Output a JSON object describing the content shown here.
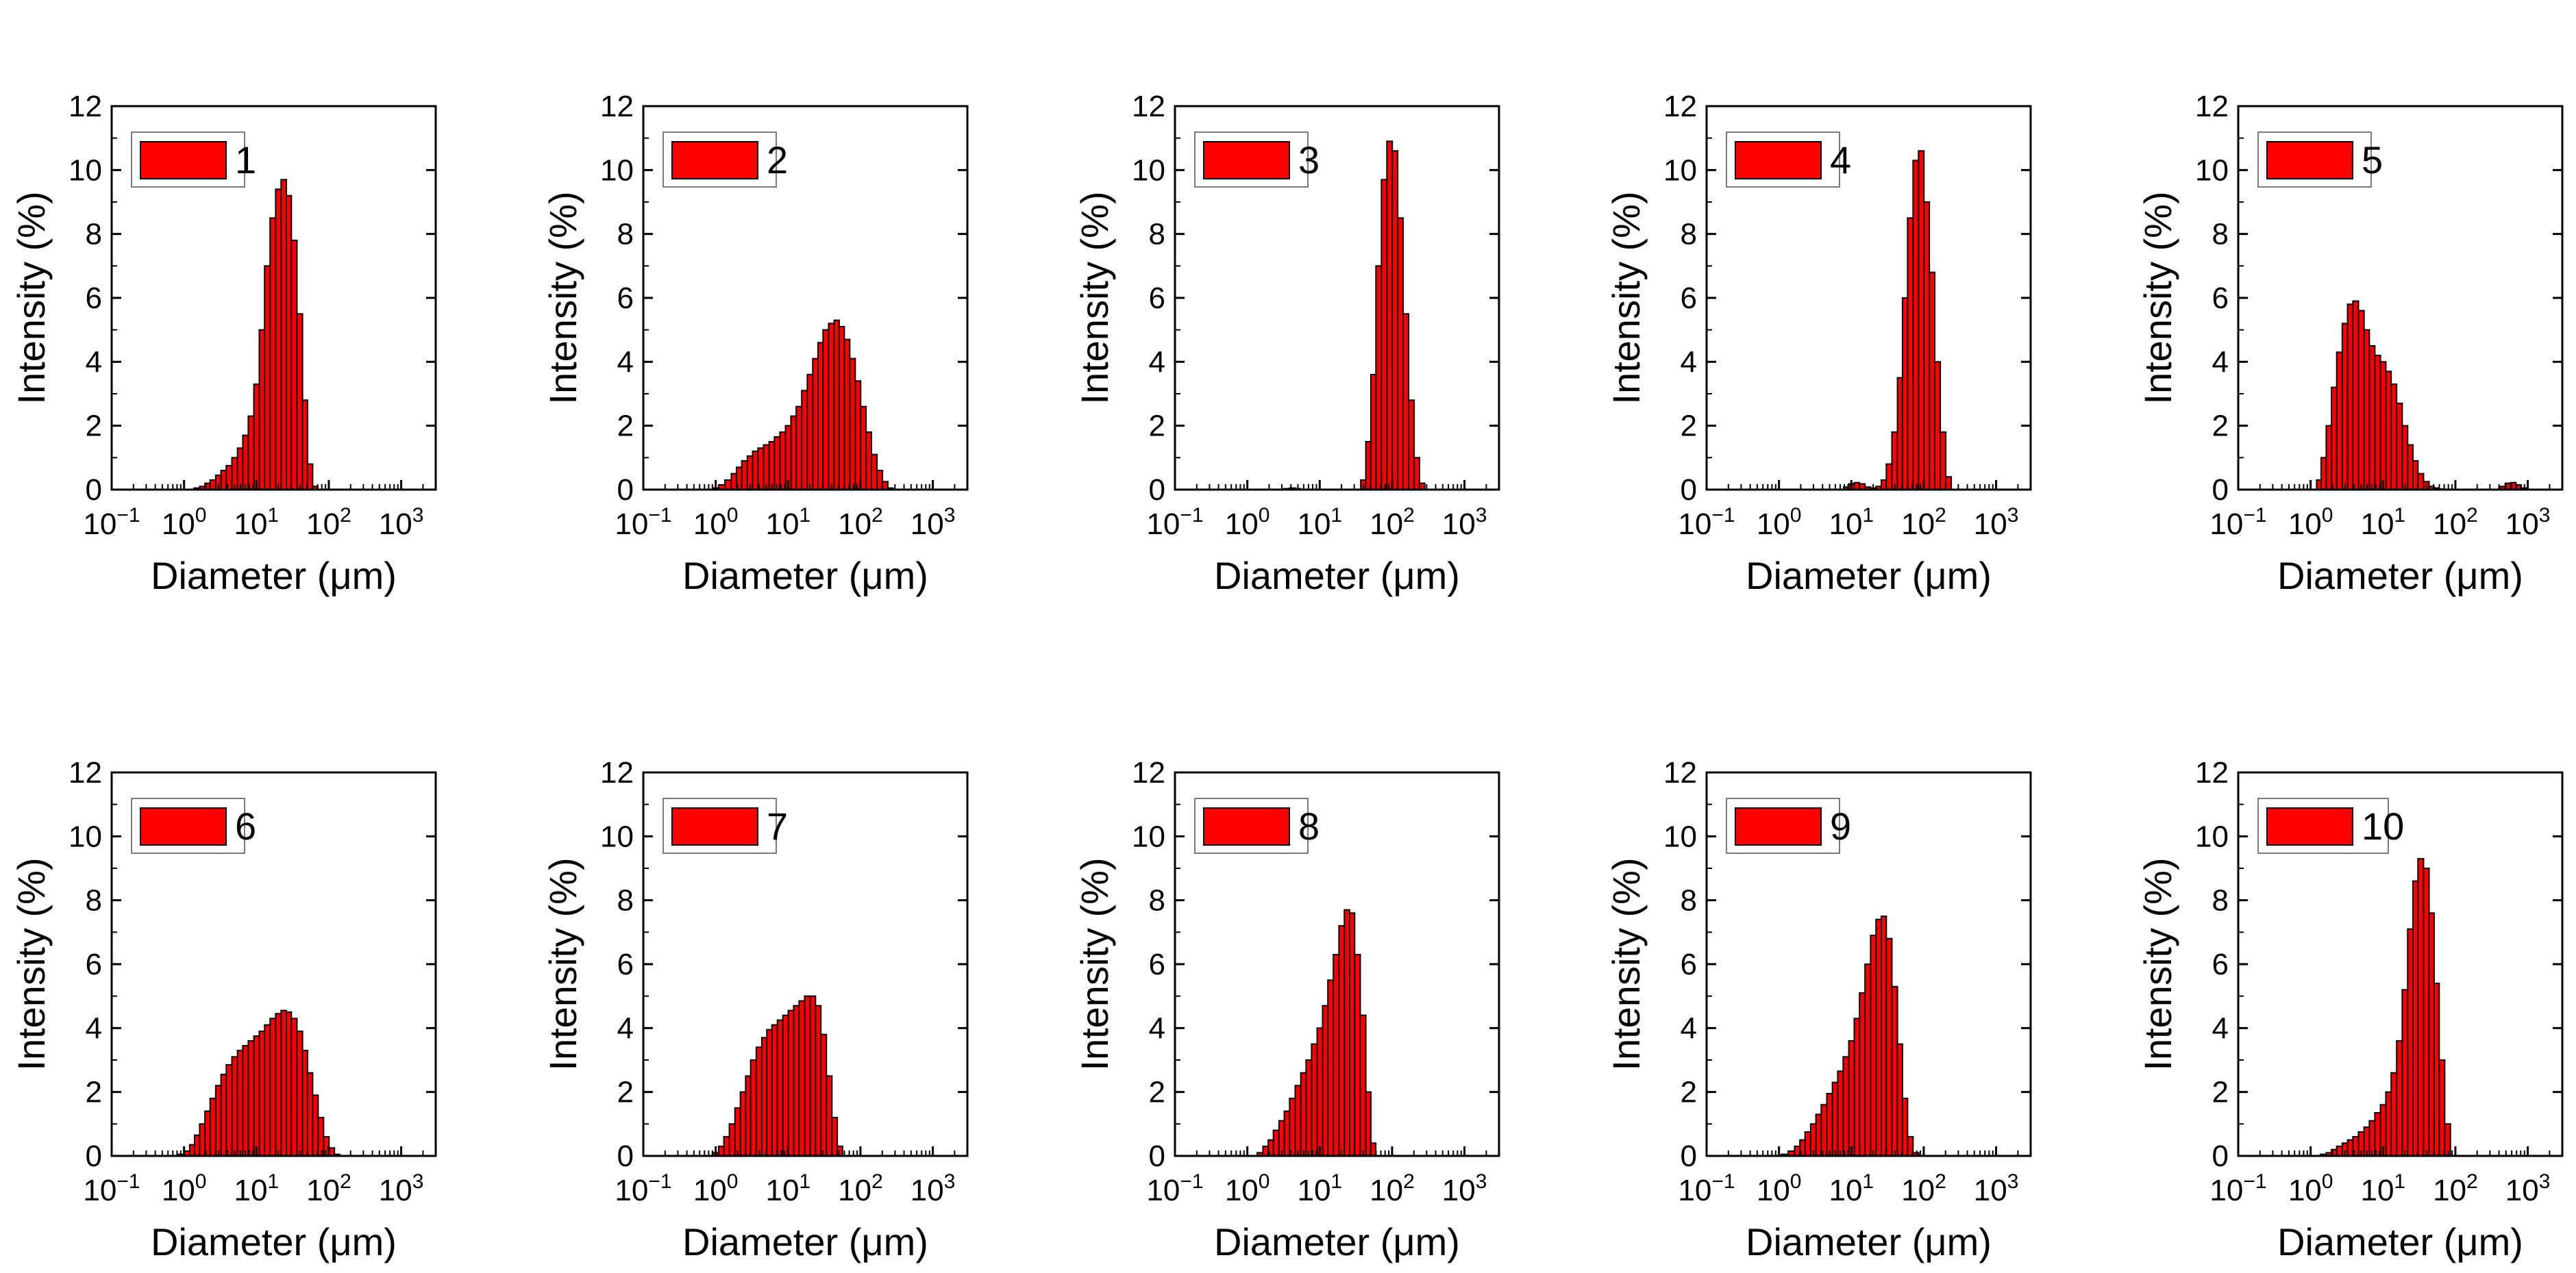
{
  "chart_data": [
    {
      "type": "bar",
      "legend": "1",
      "xlabel": "Diameter (μm)",
      "ylabel": "Intensity (%)",
      "xscale": "log",
      "xlim": [
        0.1,
        3000
      ],
      "ylim": [
        0,
        12
      ],
      "yticks": [
        0,
        2,
        4,
        6,
        8,
        10,
        12
      ],
      "xticks": [
        0.1,
        1,
        10,
        100,
        1000
      ],
      "legend_position": "top-left",
      "color": "#ff0000",
      "bar_edge_color": "#000000",
      "x": [
        1.5,
        1.8,
        2.1,
        2.5,
        3,
        3.5,
        4.2,
        5,
        6,
        7,
        8.5,
        10,
        12,
        14,
        17,
        20,
        24,
        28,
        33,
        40,
        47,
        55,
        65
      ],
      "y": [
        0.05,
        0.1,
        0.2,
        0.3,
        0.45,
        0.6,
        0.75,
        1.0,
        1.3,
        1.7,
        2.3,
        3.3,
        5.0,
        7.0,
        8.5,
        9.4,
        9.7,
        9.2,
        7.8,
        5.5,
        2.8,
        0.8,
        0.1
      ]
    },
    {
      "type": "bar",
      "legend": "2",
      "xlabel": "Diameter (μm)",
      "ylabel": "Intensity (%)",
      "xscale": "log",
      "xlim": [
        0.1,
        3000
      ],
      "ylim": [
        0,
        12
      ],
      "yticks": [
        0,
        2,
        4,
        6,
        8,
        10,
        12
      ],
      "xticks": [
        0.1,
        1,
        10,
        100,
        1000
      ],
      "legend_position": "top-left",
      "color": "#ff0000",
      "bar_edge_color": "#000000",
      "x": [
        1,
        1.2,
        1.5,
        1.8,
        2.1,
        2.5,
        3,
        3.5,
        4.2,
        5,
        6,
        7,
        8.5,
        10,
        12,
        14,
        17,
        20,
        24,
        28,
        33,
        40,
        47,
        55,
        65,
        78,
        92,
        110,
        130,
        155,
        185,
        220,
        260
      ],
      "y": [
        0.05,
        0.15,
        0.3,
        0.5,
        0.7,
        0.9,
        1.05,
        1.2,
        1.3,
        1.4,
        1.5,
        1.65,
        1.8,
        2.0,
        2.3,
        2.6,
        3.1,
        3.6,
        4.1,
        4.6,
        5.0,
        5.2,
        5.3,
        5.1,
        4.7,
        4.1,
        3.4,
        2.6,
        1.8,
        1.1,
        0.6,
        0.25,
        0.05
      ]
    },
    {
      "type": "bar",
      "legend": "3",
      "xlabel": "Diameter (μm)",
      "ylabel": "Intensity (%)",
      "xscale": "log",
      "xlim": [
        0.1,
        3000
      ],
      "ylim": [
        0,
        12
      ],
      "yticks": [
        0,
        2,
        4,
        6,
        8,
        10,
        12
      ],
      "xticks": [
        0.1,
        1,
        10,
        100,
        1000
      ],
      "legend_position": "top-left",
      "color": "#ff0000",
      "bar_edge_color": "#000000",
      "x": [
        3.5,
        4.2,
        5,
        40,
        47,
        55,
        65,
        78,
        92,
        110,
        130,
        155,
        185,
        220,
        260
      ],
      "y": [
        0.03,
        0.05,
        0.03,
        0.3,
        1.5,
        3.6,
        7.0,
        9.7,
        10.9,
        10.6,
        8.5,
        5.5,
        2.8,
        1.0,
        0.2
      ]
    },
    {
      "type": "bar",
      "legend": "4",
      "xlabel": "Diameter (μm)",
      "ylabel": "Intensity (%)",
      "xscale": "log",
      "xlim": [
        0.1,
        3000
      ],
      "ylim": [
        0,
        12
      ],
      "yticks": [
        0,
        2,
        4,
        6,
        8,
        10,
        12
      ],
      "xticks": [
        0.1,
        1,
        10,
        100,
        1000
      ],
      "legend_position": "top-left",
      "color": "#ff0000",
      "bar_edge_color": "#000000",
      "x": [
        8.5,
        10,
        12,
        14,
        17,
        20,
        24,
        28,
        33,
        40,
        47,
        55,
        65,
        78,
        92,
        110,
        130,
        155,
        185,
        220
      ],
      "y": [
        0.08,
        0.18,
        0.22,
        0.18,
        0.08,
        0.05,
        0.1,
        0.3,
        0.8,
        1.8,
        3.5,
        6.0,
        8.5,
        10.3,
        10.6,
        9.0,
        6.8,
        4.0,
        1.8,
        0.4
      ]
    },
    {
      "type": "bar",
      "legend": "5",
      "xlabel": "Diameter (μm)",
      "ylabel": "Intensity (%)",
      "xscale": "log",
      "xlim": [
        0.1,
        3000
      ],
      "ylim": [
        0,
        12
      ],
      "yticks": [
        0,
        2,
        4,
        6,
        8,
        10,
        12
      ],
      "xticks": [
        0.1,
        1,
        10,
        100,
        1000
      ],
      "legend_position": "top-left",
      "color": "#ff0000",
      "bar_edge_color": "#000000",
      "x": [
        1.3,
        1.5,
        1.8,
        2.1,
        2.5,
        3,
        3.5,
        4.2,
        5,
        6,
        7,
        8.5,
        10,
        12,
        14,
        17,
        20,
        24,
        28,
        33,
        40,
        47,
        55,
        65,
        450,
        530,
        630,
        750,
        880
      ],
      "y": [
        0.3,
        1.0,
        2.0,
        3.2,
        4.3,
        5.2,
        5.8,
        5.9,
        5.6,
        5.0,
        4.5,
        4.2,
        4.0,
        3.7,
        3.3,
        2.7,
        2.0,
        1.4,
        0.9,
        0.5,
        0.25,
        0.1,
        0.05,
        0.02,
        0.1,
        0.2,
        0.22,
        0.15,
        0.05
      ]
    },
    {
      "type": "bar",
      "legend": "6",
      "xlabel": "Diameter (μm)",
      "ylabel": "Intensity (%)",
      "xscale": "log",
      "xlim": [
        0.1,
        3000
      ],
      "ylim": [
        0,
        12
      ],
      "yticks": [
        0,
        2,
        4,
        6,
        8,
        10,
        12
      ],
      "xticks": [
        0.1,
        1,
        10,
        100,
        1000
      ],
      "legend_position": "top-left",
      "color": "#ff0000",
      "bar_edge_color": "#000000",
      "x": [
        0.9,
        1.1,
        1.3,
        1.5,
        1.8,
        2.1,
        2.5,
        3,
        3.5,
        4.2,
        5,
        6,
        7,
        8.5,
        10,
        12,
        14,
        17,
        20,
        24,
        28,
        33,
        40,
        47,
        55,
        65,
        78,
        92,
        110,
        130
      ],
      "y": [
        0.05,
        0.15,
        0.35,
        0.65,
        1.0,
        1.4,
        1.8,
        2.2,
        2.55,
        2.85,
        3.1,
        3.3,
        3.45,
        3.6,
        3.75,
        3.9,
        4.1,
        4.3,
        4.45,
        4.55,
        4.5,
        4.3,
        3.9,
        3.3,
        2.6,
        1.9,
        1.2,
        0.6,
        0.25,
        0.05
      ]
    },
    {
      "type": "bar",
      "legend": "7",
      "xlabel": "Diameter (μm)",
      "ylabel": "Intensity (%)",
      "xscale": "log",
      "xlim": [
        0.1,
        3000
      ],
      "ylim": [
        0,
        12
      ],
      "yticks": [
        0,
        2,
        4,
        6,
        8,
        10,
        12
      ],
      "xticks": [
        0.1,
        1,
        10,
        100,
        1000
      ],
      "legend_position": "top-left",
      "color": "#ff0000",
      "bar_edge_color": "#000000",
      "x": [
        1,
        1.2,
        1.4,
        1.7,
        2,
        2.4,
        2.8,
        3.3,
        4,
        4.7,
        5.5,
        6.5,
        7.8,
        9.2,
        11,
        13,
        15.5,
        18.5,
        22,
        26,
        31,
        37,
        44,
        52
      ],
      "y": [
        0.1,
        0.3,
        0.6,
        1.0,
        1.5,
        2.0,
        2.5,
        3.0,
        3.4,
        3.7,
        3.95,
        4.1,
        4.25,
        4.4,
        4.55,
        4.7,
        4.85,
        5.0,
        5.0,
        4.7,
        3.8,
        2.5,
        1.2,
        0.3
      ]
    },
    {
      "type": "bar",
      "legend": "8",
      "xlabel": "Diameter (μm)",
      "ylabel": "Intensity (%)",
      "xscale": "log",
      "xlim": [
        0.1,
        3000
      ],
      "ylim": [
        0,
        12
      ],
      "yticks": [
        0,
        2,
        4,
        6,
        8,
        10,
        12
      ],
      "xticks": [
        0.1,
        1,
        10,
        100,
        1000
      ],
      "legend_position": "top-left",
      "color": "#ff0000",
      "bar_edge_color": "#000000",
      "x": [
        1.5,
        1.8,
        2.1,
        2.5,
        3,
        3.5,
        4.2,
        5,
        6,
        7,
        8.5,
        10,
        12,
        14,
        17,
        20,
        24,
        28,
        33,
        40,
        47,
        55
      ],
      "y": [
        0.1,
        0.3,
        0.5,
        0.8,
        1.1,
        1.4,
        1.8,
        2.2,
        2.6,
        3.0,
        3.5,
        4.0,
        4.7,
        5.5,
        6.3,
        7.2,
        7.7,
        7.6,
        6.3,
        4.4,
        2.0,
        0.4
      ]
    },
    {
      "type": "bar",
      "legend": "9",
      "xlabel": "Diameter (μm)",
      "ylabel": "Intensity (%)",
      "xscale": "log",
      "xlim": [
        0.1,
        3000
      ],
      "ylim": [
        0,
        12
      ],
      "yticks": [
        0,
        2,
        4,
        6,
        8,
        10,
        12
      ],
      "xticks": [
        0.1,
        1,
        10,
        100,
        1000
      ],
      "legend_position": "top-left",
      "color": "#ff0000",
      "bar_edge_color": "#000000",
      "x": [
        1.2,
        1.5,
        1.8,
        2.1,
        2.5,
        3,
        3.5,
        4.2,
        5,
        6,
        7,
        8.5,
        10,
        12,
        14,
        17,
        20,
        24,
        28,
        33,
        40,
        47,
        55,
        65,
        78
      ],
      "y": [
        0.05,
        0.15,
        0.3,
        0.5,
        0.75,
        1.0,
        1.3,
        1.6,
        1.95,
        2.3,
        2.65,
        3.1,
        3.6,
        4.3,
        5.1,
        6.0,
        6.9,
        7.4,
        7.5,
        6.8,
        5.3,
        3.5,
        1.8,
        0.6,
        0.1
      ]
    },
    {
      "type": "bar",
      "legend": "10",
      "xlabel": "Diameter (μm)",
      "ylabel": "Intensity (%)",
      "xscale": "log",
      "xlim": [
        0.1,
        3000
      ],
      "ylim": [
        0,
        12
      ],
      "yticks": [
        0,
        2,
        4,
        6,
        8,
        10,
        12
      ],
      "xticks": [
        0.1,
        1,
        10,
        100,
        1000
      ],
      "legend_position": "top-left",
      "color": "#ff0000",
      "bar_edge_color": "#000000",
      "x": [
        1.5,
        1.8,
        2.1,
        2.5,
        3,
        3.5,
        4.2,
        5,
        6,
        7,
        8.5,
        10,
        12,
        14,
        17,
        20,
        24,
        28,
        33,
        40,
        47,
        55,
        65,
        78
      ],
      "y": [
        0.05,
        0.1,
        0.2,
        0.3,
        0.4,
        0.5,
        0.6,
        0.75,
        0.9,
        1.1,
        1.35,
        1.6,
        2.0,
        2.6,
        3.6,
        5.2,
        7.1,
        8.6,
        9.3,
        9.0,
        7.6,
        5.4,
        3.0,
        1.0
      ]
    }
  ]
}
